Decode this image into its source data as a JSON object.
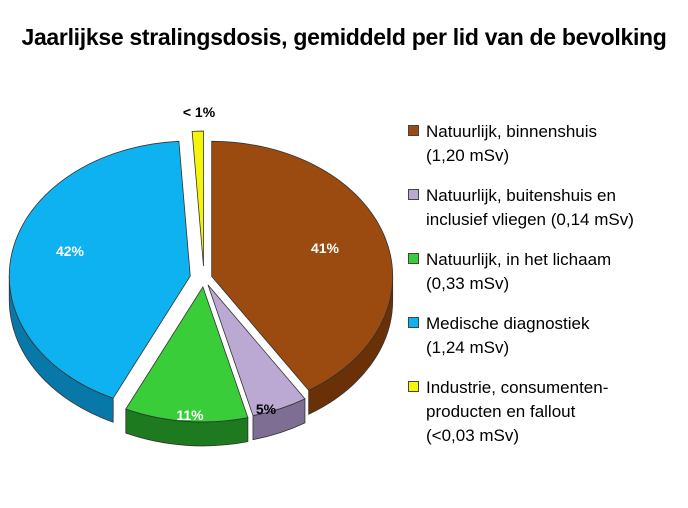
{
  "chart_data": {
    "type": "pie",
    "title": "Jaarlijkse stralingsdosis, gemiddeld per lid van de bevolking",
    "slices": [
      {
        "name": "Natuurlijk, binnenshuis (1,20 mSv)",
        "label_lines": [
          "Natuurlijk, binnenshuis",
          "(1,20 mSv)"
        ],
        "value": 41,
        "display": "41%",
        "color": "#9C4B10",
        "side": "#6A3008",
        "label_color": "#ffffff"
      },
      {
        "name": "Natuurlijk, buitenshuis en inclusief vliegen (0,14 mSv)",
        "label_lines": [
          "Natuurlijk, buitenshuis en",
          "inclusief vliegen (0,14 mSv)"
        ],
        "value": 5,
        "display": "5%",
        "color": "#BCA9D3",
        "side": "#7E6E94",
        "label_color": "#000000"
      },
      {
        "name": "Natuurlijk, in het lichaam (0,33 mSv)",
        "label_lines": [
          "Natuurlijk, in het lichaam",
          "(0,33 mSv)"
        ],
        "value": 11,
        "display": "11%",
        "color": "#3ACD3A",
        "side": "#1E7A1E",
        "label_color": "#ffffff"
      },
      {
        "name": "Medische diagnostiek (1,24 mSv)",
        "label_lines": [
          "Medische diagnostiek",
          "(1,24 mSv)"
        ],
        "value": 42,
        "display": "42%",
        "color": "#0FB2F0",
        "side": "#0878A8",
        "label_color": "#ffffff"
      },
      {
        "name": "Industrie, consumenten-producten en fallout (<0,03 mSv)",
        "label_lines": [
          "Industrie, consumenten-",
          "producten en fallout",
          "(<0,03 mSv)"
        ],
        "value": 1,
        "display": "< 1%",
        "color": "#F5F50A",
        "side": "#A8A800",
        "label_color": "#000000"
      }
    ],
    "legend_position": "right"
  }
}
